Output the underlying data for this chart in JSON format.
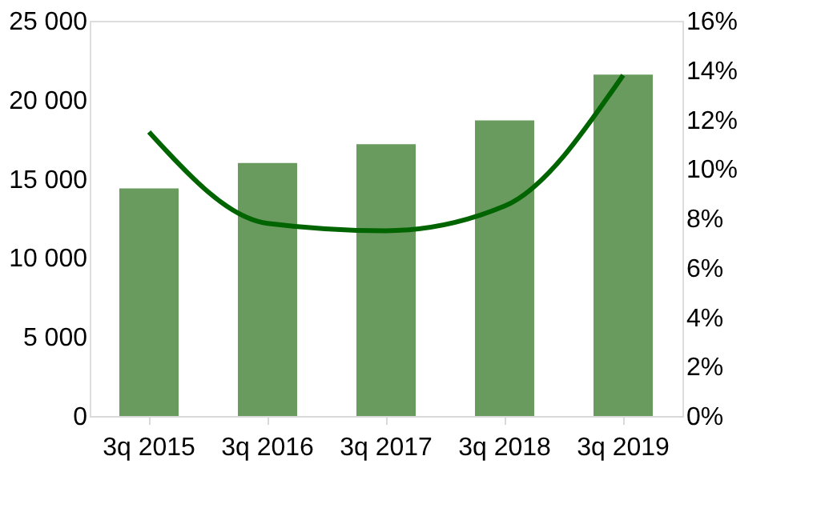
{
  "chart_data": {
    "type": "bar",
    "categories": [
      "3q 2015",
      "3q 2016",
      "3q 2017",
      "3q 2018",
      "3q 2019"
    ],
    "series": [
      {
        "color": "#699b5f",
        "values": [
          14400,
          16000,
          17200,
          18700,
          21600
        ]
      },
      {
        "type": "line",
        "axis": "y2",
        "color": "#006400",
        "values": [
          11.5,
          7.8,
          7.5,
          8.5,
          13.8
        ]
      }
    ],
    "ylim": [
      0,
      25000
    ],
    "yticks": [
      0,
      {
        "value": 5000,
        "label": "5 000"
      },
      {
        "value": 10000,
        "label": "10 000"
      },
      {
        "value": 15000,
        "label": "15 000"
      },
      {
        "value": 20000,
        "label": "20 000"
      },
      {
        "value": 25000,
        "label": "25 000"
      }
    ],
    "y2lim": [
      0,
      16
    ],
    "y2ticks": [
      {
        "value": 0,
        "label": "0%"
      },
      {
        "value": 2,
        "label": "2%"
      },
      {
        "value": 4,
        "label": "4%"
      },
      {
        "value": 6,
        "label": "6%"
      },
      {
        "value": 8,
        "label": "8%"
      },
      {
        "value": 10,
        "label": "10%"
      },
      {
        "value": 12,
        "label": "12%"
      },
      {
        "value": 14,
        "label": "14%"
      },
      {
        "value": 16,
        "label": "16%"
      }
    ],
    "grid": false,
    "marker": "none",
    "line_style": "solid"
  }
}
